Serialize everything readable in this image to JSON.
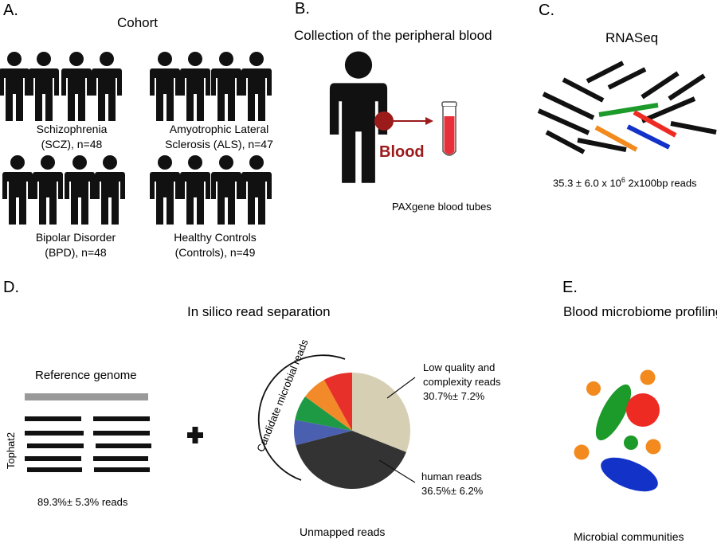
{
  "panelA": {
    "letter": "A.",
    "title": "Cohort",
    "groups": [
      {
        "line1": "Schizophrenia",
        "line2": "(SCZ), n=48"
      },
      {
        "line1": "Amyotrophic Lateral",
        "line2": "Sclerosis (ALS), n=47"
      },
      {
        "line1": "Bipolar Disorder",
        "line2": "(BPD), n=48"
      },
      {
        "line1": "Healthy Controls",
        "line2": "(Controls), n=49"
      }
    ]
  },
  "panelB": {
    "letter": "B.",
    "title": "Collection of the peripheral blood",
    "blood_label": "Blood",
    "tube_label": "PAXgene blood tubes"
  },
  "panelC": {
    "letter": "C.",
    "title": "RNASeq",
    "reads_prefix": "35.3 ± 6.0  x 10",
    "reads_exp": "6",
    "reads_suffix": " 2x100bp reads"
  },
  "panelD": {
    "letter": "D.",
    "title": "In silico read separation",
    "reference_label": "Reference genome",
    "aligner_label": "Tophat2",
    "mapped_label": "89.3%± 5.3% reads",
    "candidate_label": "Candidate microbial reads",
    "unmapped_label": "Unmapped reads",
    "lowq_line1": "Low quality and",
    "lowq_line2": "complexity reads",
    "lowq_line3": "30.7%± 7.2%",
    "human_line1": "human reads",
    "human_line2": "36.5%± 6.2%",
    "pie_values": [
      31,
      40,
      7,
      7,
      7,
      8
    ],
    "pie_colors": [
      "#d6cfb4",
      "#333333",
      "#4b5fb0",
      "#1e9a45",
      "#f28a2a",
      "#e8302a"
    ]
  },
  "panelE": {
    "letter": "E.",
    "title": "Blood microbiome profiling",
    "communities_label": "Microbial communities"
  },
  "colors": {
    "silhouette": "#111111",
    "blood_red": "#9b1b1b",
    "green": "#1c9a2a",
    "red": "#ee2b22",
    "orange": "#f28a1e",
    "blue": "#1232c8",
    "grey": "#999999"
  }
}
